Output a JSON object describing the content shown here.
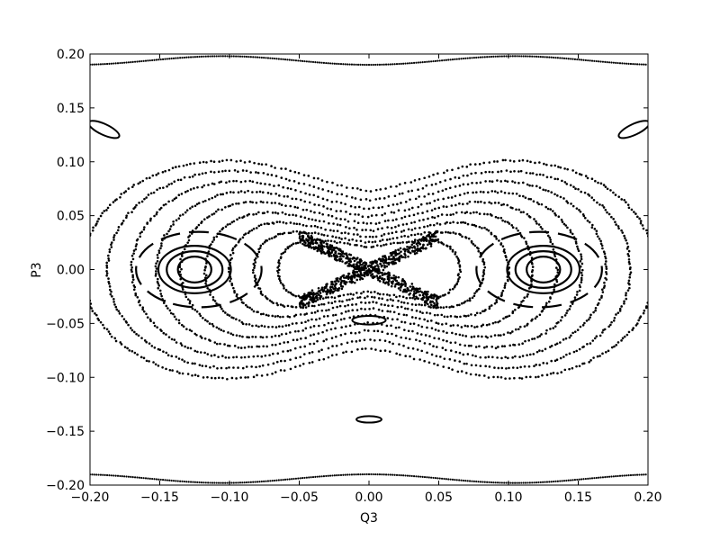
{
  "chart_data": {
    "type": "scatter",
    "title": "",
    "xlabel": "Q3",
    "ylabel": "P3",
    "xlim": [
      -0.2,
      0.2
    ],
    "ylim": [
      -0.2,
      0.2
    ],
    "x_tick_labels": [
      "−0.20",
      "−0.15",
      "−0.10",
      "−0.05",
      "0.00",
      "0.05",
      "0.10",
      "0.15",
      "0.20"
    ],
    "y_tick_labels": [
      "0.20",
      "0.15",
      "0.10",
      "0.05",
      "0.00",
      "−0.05",
      "−0.10",
      "−0.15",
      "−0.20"
    ],
    "grid": false,
    "legend": "none",
    "marker_color": "#000000",
    "description_of_content": "",
    "series": [
      {
        "kind": "orbit_closed",
        "cx": -0.125,
        "cy": 0.0,
        "a": 0.012,
        "b": 0.012
      },
      {
        "kind": "orbit_closed",
        "cx": -0.125,
        "cy": 0.0,
        "a": 0.02,
        "b": 0.017
      },
      {
        "kind": "orbit_closed",
        "cx": -0.125,
        "cy": 0.0,
        "a": 0.026,
        "b": 0.022
      },
      {
        "kind": "orbit_dashed",
        "cx": -0.122,
        "cy": 0.0,
        "a": 0.045,
        "b": 0.035
      },
      {
        "kind": "orbit_closed",
        "cx": 0.125,
        "cy": 0.0,
        "a": 0.012,
        "b": 0.012
      },
      {
        "kind": "orbit_closed",
        "cx": 0.125,
        "cy": 0.0,
        "a": 0.02,
        "b": 0.017
      },
      {
        "kind": "orbit_closed",
        "cx": 0.125,
        "cy": 0.0,
        "a": 0.026,
        "b": 0.022
      },
      {
        "kind": "orbit_dashed",
        "cx": 0.122,
        "cy": 0.0,
        "a": 0.045,
        "b": 0.035
      },
      {
        "kind": "island",
        "cx": -0.19,
        "cy": 0.13,
        "a": 0.012,
        "b": 0.005,
        "rot": 25
      },
      {
        "kind": "island",
        "cx": 0.19,
        "cy": 0.13,
        "a": 0.012,
        "b": 0.005,
        "rot": -25
      },
      {
        "kind": "island",
        "cx": 0.0,
        "cy": -0.139,
        "a": 0.009,
        "b": 0.003,
        "rot": 0
      },
      {
        "kind": "island",
        "cx": 0.0,
        "cy": -0.047,
        "a": 0.012,
        "b": 0.004,
        "rot": 0
      },
      {
        "kind": "dotted_peanut",
        "outer": 0.195,
        "inner_y": 0.035,
        "outer_y": 0.13
      },
      {
        "kind": "chaotic_separatrix",
        "center": [
          0.0,
          0.0
        ],
        "spread": 0.05
      }
    ]
  }
}
